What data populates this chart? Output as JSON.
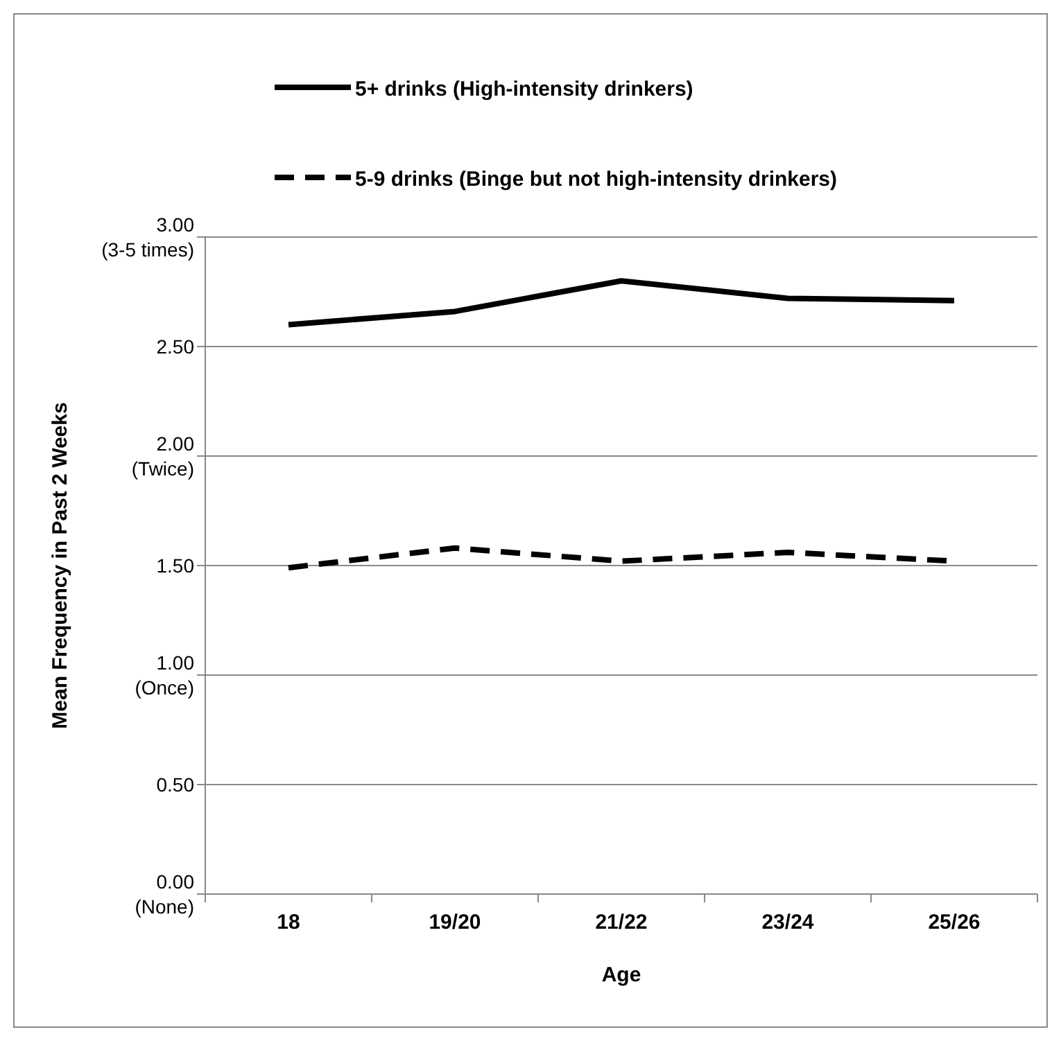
{
  "chart_data": {
    "type": "line",
    "xlabel": "Age",
    "ylabel": "Mean Frequency in Past 2 Weeks",
    "categories": [
      "18",
      "19/20",
      "21/22",
      "23/24",
      "25/26"
    ],
    "series": [
      {
        "name": "5+ drinks (High-intensity drinkers)",
        "color": "#000000",
        "line_style": "solid",
        "values": [
          2.6,
          2.66,
          2.8,
          2.72,
          2.71
        ]
      },
      {
        "name": "5-9 drinks (Binge but not high-intensity drinkers)",
        "color": "#000000",
        "line_style": "dashed",
        "values": [
          1.49,
          1.58,
          1.52,
          1.56,
          1.52
        ]
      }
    ],
    "ylim": [
      0,
      3
    ],
    "yticks": [
      {
        "value": 0,
        "label": "0.00\n(None)"
      },
      {
        "value": 0.5,
        "label": "0.50"
      },
      {
        "value": 1,
        "label": "1.00\n(Once)"
      },
      {
        "value": 1.5,
        "label": "1.50"
      },
      {
        "value": 2,
        "label": "2.00\n(Twice)"
      },
      {
        "value": 2.5,
        "label": "2.50"
      },
      {
        "value": 3,
        "label": "3.00\n(3-5 times)"
      }
    ],
    "grid": "y",
    "legend": "top"
  }
}
